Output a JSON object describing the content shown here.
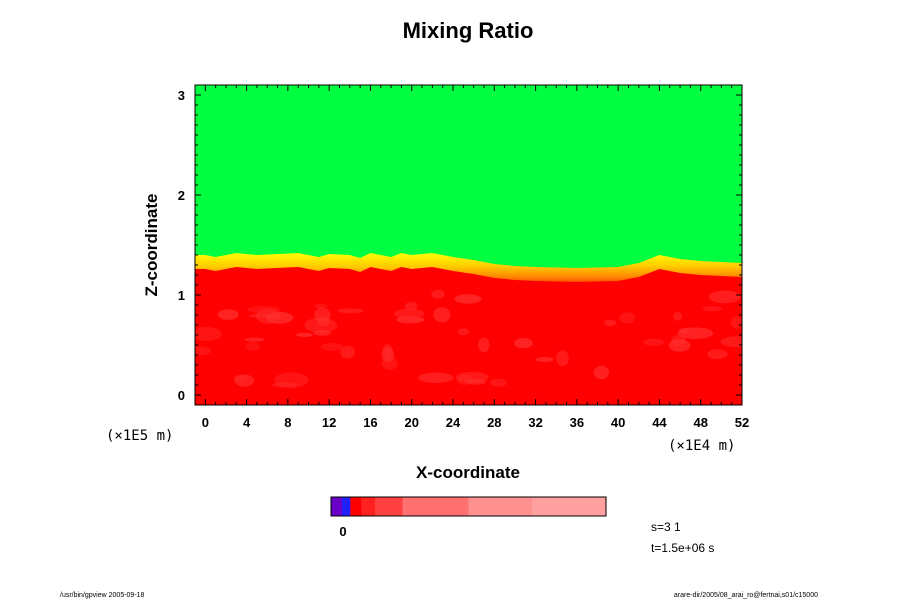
{
  "chart_data": {
    "type": "heatmap",
    "title": "Mixing Ratio",
    "xlabel": "X-coordinate",
    "ylabel": "Z-coordinate",
    "x_unit": "(×1E4 m)",
    "y_unit": "(×1E5 m)",
    "xlim": [
      -1,
      52
    ],
    "ylim": [
      -0.1,
      3.1
    ],
    "x_ticks": [
      "0",
      "4",
      "8",
      "12",
      "16",
      "20",
      "24",
      "28",
      "32",
      "36",
      "40",
      "44",
      "48",
      "52"
    ],
    "x_tick_values": [
      0,
      4,
      8,
      12,
      16,
      20,
      24,
      28,
      32,
      36,
      40,
      44,
      48,
      52
    ],
    "y_ticks": [
      "0",
      "1",
      "2",
      "3"
    ],
    "y_tick_values": [
      0,
      1,
      2,
      3
    ],
    "regions": {
      "upper_color": "#00ff40",
      "lower_color": "#ff0000",
      "mottle_color": "#ff3030",
      "transition_colors": [
        "#ffff00",
        "#ffcc00",
        "#ff9900",
        "#ff6600"
      ]
    },
    "interface_z": [
      [
        -1,
        1.38
      ],
      [
        0,
        1.38
      ],
      [
        1,
        1.36
      ],
      [
        2,
        1.38
      ],
      [
        3,
        1.4
      ],
      [
        5,
        1.38
      ],
      [
        7,
        1.39
      ],
      [
        9,
        1.4
      ],
      [
        11,
        1.36
      ],
      [
        12,
        1.39
      ],
      [
        14,
        1.38
      ],
      [
        15,
        1.35
      ],
      [
        16,
        1.4
      ],
      [
        18,
        1.36
      ],
      [
        19,
        1.4
      ],
      [
        20,
        1.38
      ],
      [
        22,
        1.4
      ],
      [
        24,
        1.36
      ],
      [
        26,
        1.33
      ],
      [
        28,
        1.29
      ],
      [
        30,
        1.27
      ],
      [
        32,
        1.26
      ],
      [
        36,
        1.25
      ],
      [
        40,
        1.26
      ],
      [
        42,
        1.3
      ],
      [
        44,
        1.38
      ],
      [
        46,
        1.34
      ],
      [
        48,
        1.32
      ],
      [
        50,
        1.31
      ],
      [
        52,
        1.3
      ]
    ],
    "colorbar": {
      "label": "0",
      "segments": [
        "#6a00c8",
        "#2020ff",
        "#ff0000",
        "#ff2020",
        "#ff4040",
        "#ff7070",
        "#ff9090",
        "#ffa0a0"
      ],
      "fractions": [
        0.04,
        0.03,
        0.04,
        0.05,
        0.1,
        0.24,
        0.23,
        0.27
      ]
    }
  },
  "info": {
    "step": "s=3 1",
    "time": "t=1.5e+06 s"
  },
  "footer": {
    "left": "/usr/bin/gpview 2005-09-18",
    "right": "arare-dir/2005/08_arai_ro@fertnai,s01/c15000"
  }
}
